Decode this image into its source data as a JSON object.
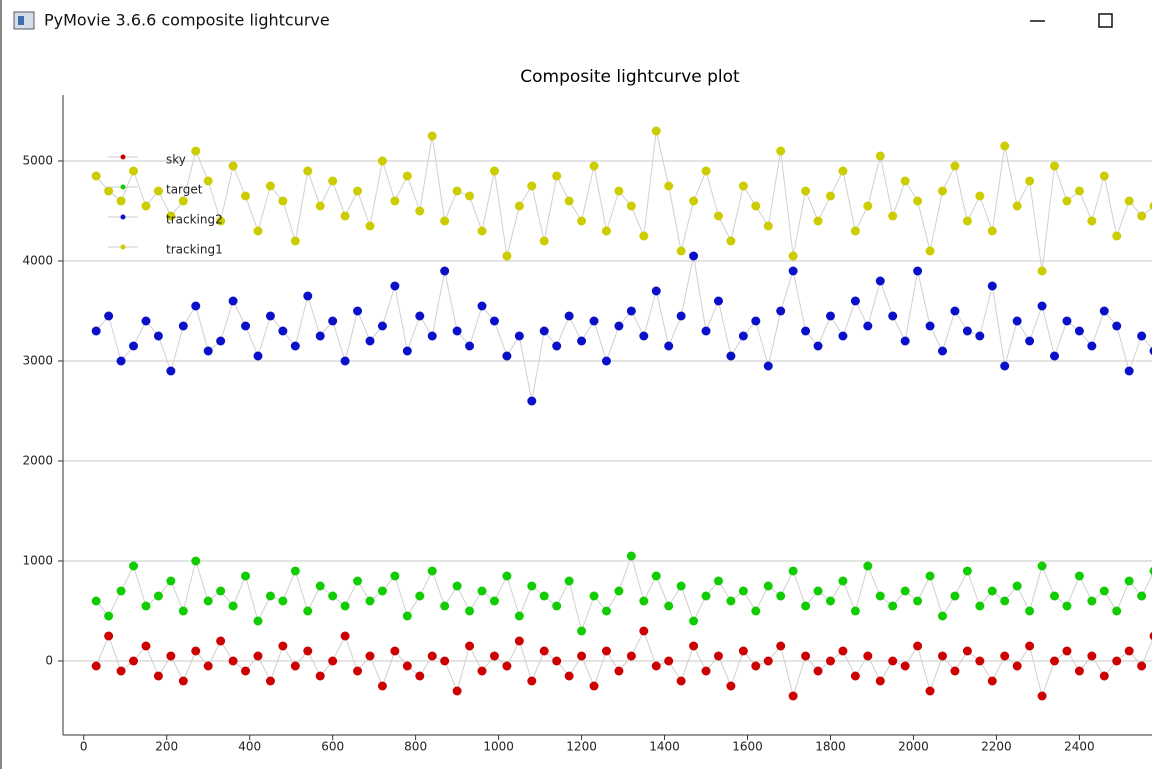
{
  "window": {
    "title": "PyMovie 3.6.6 composite lightcurve"
  },
  "chart_data": {
    "type": "scatter",
    "title": "Composite lightcurve plot",
    "x": [
      30,
      60,
      90,
      120,
      150,
      180,
      210,
      240,
      270,
      300,
      330,
      360,
      390,
      420,
      450,
      480,
      510,
      540,
      570,
      600,
      630,
      660,
      690,
      720,
      750,
      780,
      810,
      840,
      870,
      900,
      930,
      960,
      990,
      1020,
      1050,
      1080,
      1110,
      1140,
      1170,
      1200,
      1230,
      1260,
      1290,
      1320,
      1350,
      1380,
      1410,
      1440,
      1470,
      1500,
      1530,
      1560,
      1590,
      1620,
      1650,
      1680,
      1710,
      1740,
      1770,
      1800,
      1830,
      1860,
      1890,
      1920,
      1950,
      1980,
      2010,
      2040,
      2070,
      2100,
      2130,
      2160,
      2190,
      2220,
      2250,
      2280,
      2310,
      2340,
      2370,
      2400,
      2430,
      2460,
      2490,
      2520,
      2550,
      2580
    ],
    "series": [
      {
        "name": "sky",
        "color": "#cc0000",
        "values": [
          -50,
          250,
          -100,
          0,
          150,
          -150,
          50,
          -200,
          100,
          -50,
          200,
          0,
          -100,
          50,
          -200,
          150,
          -50,
          100,
          -150,
          0,
          250,
          -100,
          50,
          -250,
          100,
          -50,
          -150,
          50,
          0,
          -300,
          150,
          -100,
          50,
          -50,
          200,
          -200,
          100,
          0,
          -150,
          50,
          -250,
          100,
          -100,
          50,
          300,
          -50,
          0,
          -200,
          150,
          -100,
          50,
          -250,
          100,
          -50,
          0,
          150,
          -350,
          50,
          -100,
          0,
          100,
          -150,
          50,
          -200,
          0,
          -50,
          150,
          -300,
          50,
          -100,
          100,
          0,
          -200,
          50,
          -50,
          150,
          -350,
          0,
          100,
          -100,
          50,
          -150,
          0,
          100,
          -50,
          250
        ]
      },
      {
        "name": "target",
        "color": "#11cc00",
        "values": [
          600,
          450,
          700,
          950,
          550,
          650,
          800,
          500,
          1000,
          600,
          700,
          550,
          850,
          400,
          650,
          600,
          900,
          500,
          750,
          650,
          550,
          800,
          600,
          700,
          850,
          450,
          650,
          900,
          550,
          750,
          500,
          700,
          600,
          850,
          450,
          750,
          650,
          550,
          800,
          300,
          650,
          500,
          700,
          1050,
          600,
          850,
          550,
          750,
          400,
          650,
          800,
          600,
          700,
          500,
          750,
          650,
          900,
          550,
          700,
          600,
          800,
          500,
          950,
          650,
          550,
          700,
          600,
          850,
          450,
          650,
          900,
          550,
          700,
          600,
          750,
          500,
          950,
          650,
          550,
          850,
          600,
          700,
          500,
          800,
          650,
          900
        ]
      },
      {
        "name": "tracking2",
        "color": "#0a10c8",
        "values": [
          3300,
          3450,
          3000,
          3150,
          3400,
          3250,
          2900,
          3350,
          3550,
          3100,
          3200,
          3600,
          3350,
          3050,
          3450,
          3300,
          3150,
          3650,
          3250,
          3400,
          3000,
          3500,
          3200,
          3350,
          3750,
          3100,
          3450,
          3250,
          3900,
          3300,
          3150,
          3550,
          3400,
          3050,
          3250,
          2600,
          3300,
          3150,
          3450,
          3200,
          3400,
          3000,
          3350,
          3500,
          3250,
          3700,
          3150,
          3450,
          4050,
          3300,
          3600,
          3050,
          3250,
          3400,
          2950,
          3500,
          3900,
          3300,
          3150,
          3450,
          3250,
          3600,
          3350,
          3800,
          3450,
          3200,
          3900,
          3350,
          3100,
          3500,
          3300,
          3250,
          3750,
          2950,
          3400,
          3200,
          3550,
          3050,
          3400,
          3300,
          3150,
          3500,
          3350,
          2900,
          3250,
          3100
        ]
      },
      {
        "name": "tracking1",
        "color": "#cccc00",
        "values": [
          4850,
          4700,
          4600,
          4900,
          4550,
          4700,
          4450,
          4600,
          5100,
          4800,
          4400,
          4950,
          4650,
          4300,
          4750,
          4600,
          4200,
          4900,
          4550,
          4800,
          4450,
          4700,
          4350,
          5000,
          4600,
          4850,
          4500,
          5250,
          4400,
          4700,
          4650,
          4300,
          4900,
          4050,
          4550,
          4750,
          4200,
          4850,
          4600,
          4400,
          4950,
          4300,
          4700,
          4550,
          4250,
          5300,
          4750,
          4100,
          4600,
          4900,
          4450,
          4200,
          4750,
          4550,
          4350,
          5100,
          4050,
          4700,
          4400,
          4650,
          4900,
          4300,
          4550,
          5050,
          4450,
          4800,
          4600,
          4100,
          4700,
          4950,
          4400,
          4650,
          4300,
          5150,
          4550,
          4800,
          3900,
          4950,
          4600,
          4700,
          4400,
          4850,
          4250,
          4600,
          4450,
          4550
        ]
      }
    ],
    "xlim": [
      -50,
      2575
    ],
    "ylim": [
      -740,
      5660
    ],
    "xticks": [
      0,
      200,
      400,
      600,
      800,
      1000,
      1200,
      1400,
      1600,
      1800,
      2000,
      2200,
      2400
    ],
    "yticks": [
      0,
      1000,
      2000,
      3000,
      4000,
      5000
    ],
    "grid": true,
    "legend": "upper-left"
  }
}
